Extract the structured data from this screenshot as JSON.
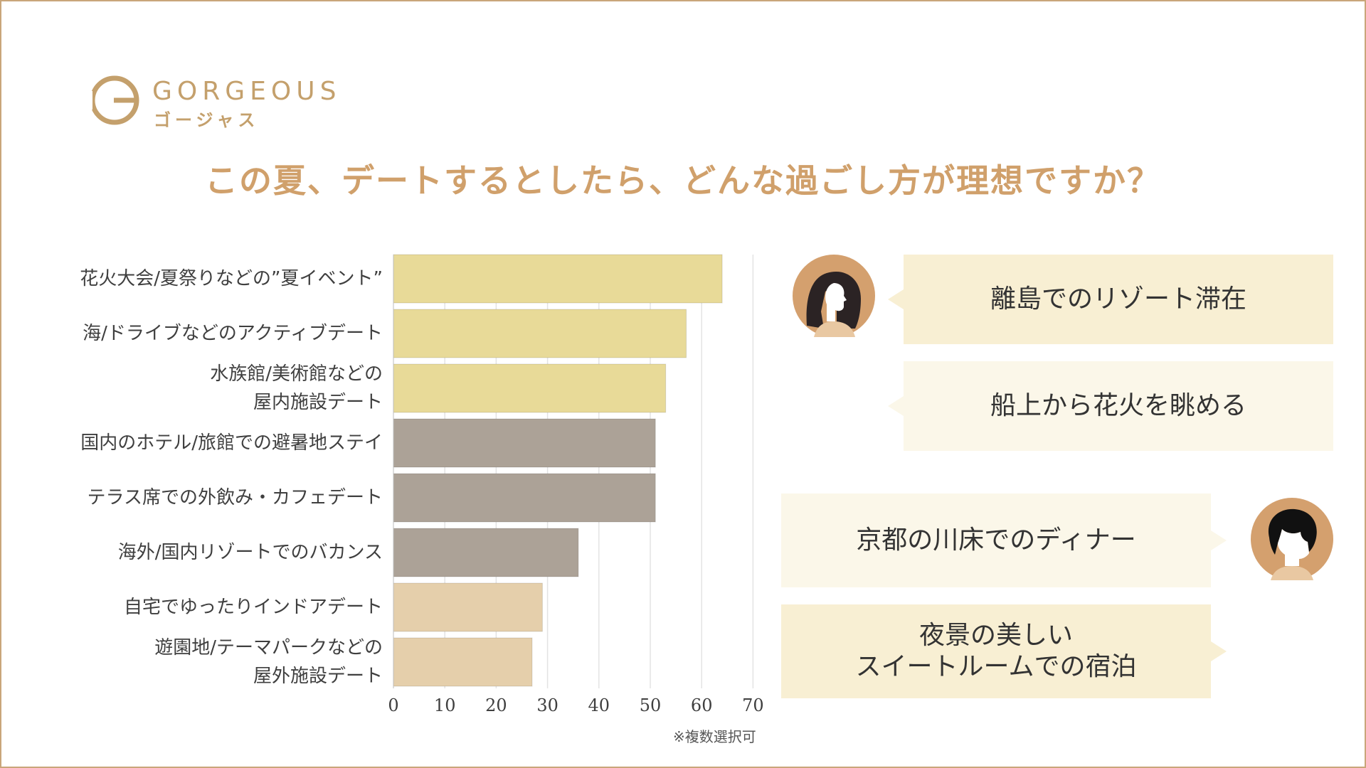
{
  "logo": {
    "wordmark": "GORGEOUS",
    "kana": "ゴージャス"
  },
  "title": "この夏、デートするとしたら、どんな過ごし方が理想ですか？",
  "note": "※複数選択可",
  "colors": {
    "frame": "#c9a67a",
    "title": "#d0a06b",
    "bar_yellow": "#e8da98",
    "bar_gray": "#aca297",
    "bar_beige": "#e5cfab",
    "bubble_a": "#f8efd3",
    "bubble_b": "#fbf7e9"
  },
  "chart_data": {
    "type": "bar",
    "orientation": "horizontal",
    "categories": [
      "花火大会/夏祭りなどの”夏イベント”",
      "海/ドライブなどのアクティブデート",
      "水族館/美術館などの\n屋内施設デート",
      "国内のホテル/旅館での避暑地ステイ",
      "テラス席での外飲み・カフェデート",
      "海外/国内リゾートでのバカンス",
      "自宅でゆったりインドアデート",
      "遊園地/テーマパークなどの\n屋外施設デート"
    ],
    "values": [
      64,
      57,
      53,
      51,
      51,
      36,
      29,
      27
    ],
    "bar_colors": [
      "#e8da98",
      "#e8da98",
      "#e8da98",
      "#aca297",
      "#aca297",
      "#aca297",
      "#e5cfab",
      "#e5cfab"
    ],
    "xlim": [
      0,
      70
    ],
    "xticks": [
      0,
      10,
      20,
      30,
      40,
      50,
      60,
      70
    ],
    "grid": true
  },
  "bubbles": [
    {
      "text": "離島でのリゾート滞在",
      "speaker": "woman"
    },
    {
      "text": "船上から花火を眺める",
      "speaker": "woman"
    },
    {
      "text": "京都の川床でのディナー",
      "speaker": "man"
    },
    {
      "text": "夜景の美しい\nスイートルームでの宿泊",
      "speaker": "man"
    }
  ],
  "avatars": {
    "woman": {
      "icon": "woman-profile-icon",
      "bg": "#d4a06e"
    },
    "man": {
      "icon": "man-profile-icon",
      "bg": "#d4a06e"
    }
  }
}
